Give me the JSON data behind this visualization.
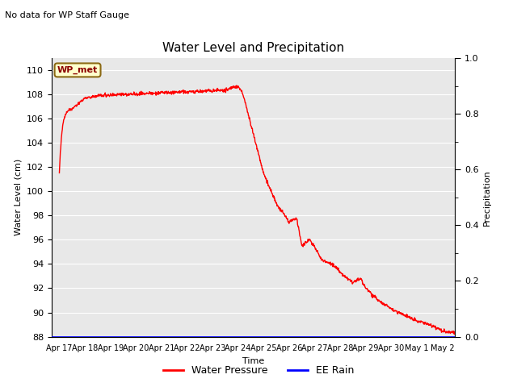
{
  "title": "Water Level and Precipitation",
  "top_left_text": "No data for WP Staff Gauge",
  "xlabel": "Time",
  "ylabel_left": "Water Level (cm)",
  "ylabel_right": "Precipitation",
  "legend_labels": [
    "Water Pressure",
    "EE Rain"
  ],
  "legend_colors": [
    "red",
    "blue"
  ],
  "wp_label": "WP_met",
  "ylim_left": [
    88,
    111
  ],
  "ylim_right": [
    0.0,
    1.0
  ],
  "yticks_left": [
    88,
    90,
    92,
    94,
    96,
    98,
    100,
    102,
    104,
    106,
    108,
    110
  ],
  "yticks_right_labeled": [
    0.0,
    0.2,
    0.4,
    0.6,
    0.8,
    1.0
  ],
  "yticks_right_minor": [
    0.1,
    0.3,
    0.5,
    0.7,
    0.9
  ],
  "plot_bg_color": "#e8e8e8",
  "line_color": "red",
  "rain_color": "blue",
  "xtick_labels": [
    "Apr 17",
    "Apr 18",
    "Apr 19",
    "Apr 20",
    "Apr 21",
    "Apr 22",
    "Apr 23",
    "Apr 24",
    "Apr 25",
    "Apr 26",
    "Apr 27",
    "Apr 28",
    "Apr 29",
    "Apr 30",
    "May 1",
    "May 2"
  ],
  "xtick_positions": [
    0,
    1,
    2,
    3,
    4,
    5,
    6,
    7,
    8,
    9,
    10,
    11,
    12,
    13,
    14,
    15
  ]
}
